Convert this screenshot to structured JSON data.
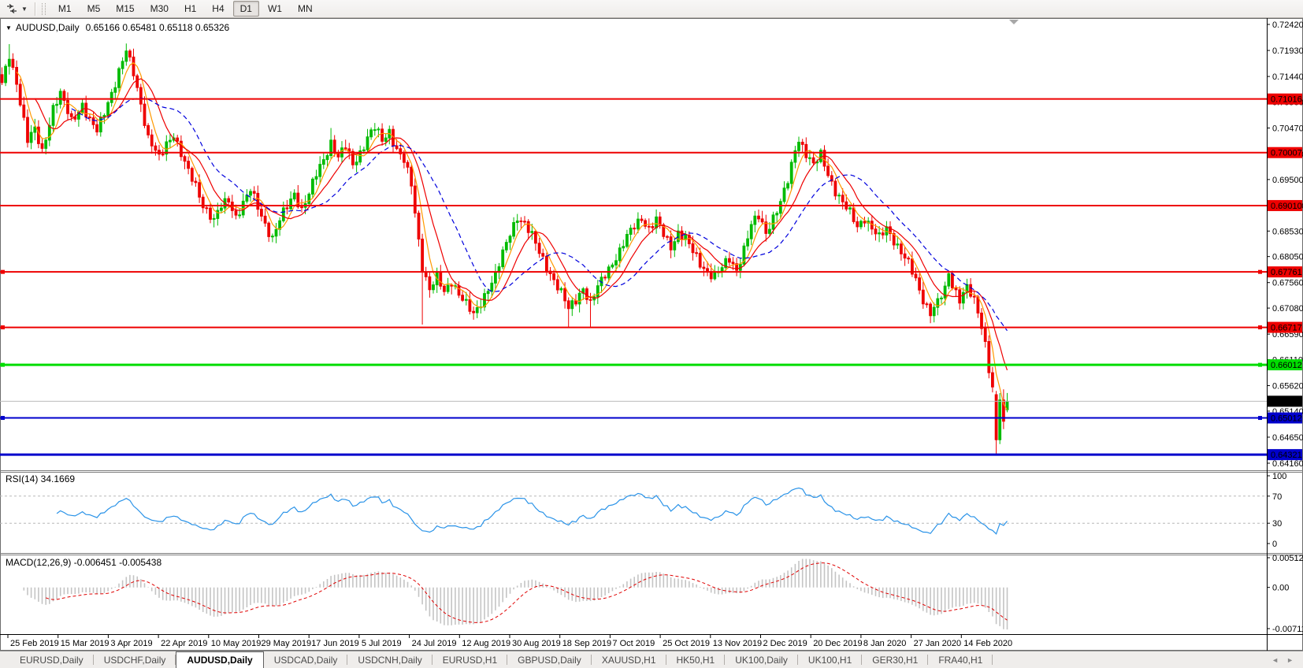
{
  "toolbar": {
    "timeframes": [
      "M1",
      "M5",
      "M15",
      "M30",
      "H1",
      "H4",
      "D1",
      "W1",
      "MN"
    ],
    "active_timeframe": "D1"
  },
  "chart": {
    "title_symbol": "AUDUSD,Daily",
    "title_ohlc": "0.65166 0.65481 0.65118 0.65326",
    "rsi_label": "RSI(14) 34.1669",
    "macd_label": "MACD(12,26,9) -0.006451 -0.005438"
  },
  "icons": {
    "symbol_dropdown": "▼",
    "toolbar_dropdown": "▼",
    "tabs_scroll_left": "◄",
    "tabs_scroll_right": "►"
  },
  "tabs": [
    "EURUSD,Daily",
    "USDCHF,Daily",
    "AUDUSD,Daily",
    "USDCAD,Daily",
    "USDCNH,Daily",
    "EURUSD,H1",
    "GBPUSD,Daily",
    "XAUUSD,H1",
    "HK50,H1",
    "UK100,Daily",
    "UK100,H1",
    "GER30,H1",
    "FRA40,H1"
  ],
  "active_tab": "AUDUSD,Daily",
  "chart_data": {
    "type": "candlestick",
    "symbol": "AUDUSD",
    "timeframe": "Daily",
    "ohlc_display": {
      "open": 0.65166,
      "high": 0.65481,
      "low": 0.65118,
      "close": 0.65326
    },
    "meta": {
      "candle_count": 276,
      "x0": 2.5,
      "step": 4.64,
      "noise": 0.0007
    },
    "price_axis": {
      "max": 0.7242,
      "min": 0.6416,
      "ticks": [
        "0.72420",
        "0.71930",
        "0.71440",
        "0.70960",
        "0.70470",
        "0.69980",
        "0.69500",
        "0.69010",
        "0.68530",
        "0.68050",
        "0.67560",
        "0.67080",
        "0.66590",
        "0.66110",
        "0.65620",
        "0.65140",
        "0.64650",
        "0.64160"
      ]
    },
    "hlines": [
      {
        "price": 0.71016,
        "label": "0.71016",
        "color": "#ee0000",
        "width": 2,
        "handles": false
      },
      {
        "price": 0.70007,
        "label": "0.70007",
        "color": "#ee0000",
        "width": 2,
        "handles": false
      },
      {
        "price": 0.6901,
        "label": "0.69010",
        "color": "#ee0000",
        "width": 2,
        "handles": false
      },
      {
        "price": 0.67761,
        "label": "0.67761",
        "color": "#ee0000",
        "width": 2,
        "handles": true
      },
      {
        "price": 0.66717,
        "label": "0.66717",
        "color": "#ee0000",
        "width": 2,
        "handles": true
      },
      {
        "price": 0.66012,
        "label": "0.66012",
        "color": "#00dd00",
        "width": 3,
        "handles": true
      },
      {
        "price": 0.65012,
        "label": "0.65012",
        "color": "#0000cc",
        "width": 2,
        "handles": true
      },
      {
        "price": 0.64321,
        "label": "0.64321",
        "color": "#0000cc",
        "width": 3,
        "handles": false
      }
    ],
    "current_price": {
      "price": 0.65326,
      "label": "0.65326",
      "line_color": "#bcbcbc",
      "badge_color": "#000000"
    },
    "candle_colors": {
      "up": "#00bb00",
      "down": "#ee0000"
    },
    "moving_averages": [
      {
        "period": 5,
        "color": "#ff9900",
        "style": "solid"
      },
      {
        "period": 10,
        "color": "#ee0000",
        "style": "solid"
      },
      {
        "period": 20,
        "color": "#0000dd",
        "style": "dash"
      }
    ],
    "rsi": {
      "period": 14,
      "current": "34.1669",
      "levels": [
        70,
        30
      ],
      "axis_labels": [
        "100",
        "70",
        "30",
        "0"
      ],
      "color": "#2a93e8"
    },
    "macd": {
      "fast": 12,
      "slow": 26,
      "signal": 9,
      "current": "-0.006451 -0.005438",
      "axis": {
        "top": 0.005121,
        "zero": 0.0,
        "bottom": -0.007111
      },
      "axis_labels": [
        "0.005121",
        "0.00",
        "-0.007111"
      ],
      "hist_color": "#c4c4c4",
      "signal_color": "#e00000"
    },
    "date_labels": [
      "25 Feb 2019",
      "15 Mar 2019",
      "3 Apr 2019",
      "22 Apr 2019",
      "10 May 2019",
      "29 May 2019",
      "17 Jun 2019",
      "5 Jul 2019",
      "24 Jul 2019",
      "12 Aug 2019",
      "30 Aug 2019",
      "18 Sep 2019",
      "7 Oct 2019",
      "25 Oct 2019",
      "13 Nov 2019",
      "2 Dec 2019",
      "20 Dec 2019",
      "8 Jan 2020",
      "27 Jan 2020",
      "14 Feb 2020"
    ],
    "price_path": [
      [
        0,
        0.7128
      ],
      [
        2,
        0.7185
      ],
      [
        4,
        0.7135
      ],
      [
        7,
        0.7022
      ],
      [
        9,
        0.7042
      ],
      [
        11,
        0.7005
      ],
      [
        14,
        0.7085
      ],
      [
        16,
        0.7108
      ],
      [
        19,
        0.7062
      ],
      [
        22,
        0.7092
      ],
      [
        24,
        0.7058
      ],
      [
        26,
        0.704
      ],
      [
        29,
        0.7098
      ],
      [
        31,
        0.7132
      ],
      [
        34,
        0.719
      ],
      [
        36,
        0.7152
      ],
      [
        38,
        0.7095
      ],
      [
        40,
        0.7028
      ],
      [
        43,
        0.6988
      ],
      [
        45,
        0.7018
      ],
      [
        47,
        0.7038
      ],
      [
        49,
        0.6998
      ],
      [
        51,
        0.6962
      ],
      [
        53,
        0.6938
      ],
      [
        55,
        0.6905
      ],
      [
        58,
        0.6872
      ],
      [
        60,
        0.6898
      ],
      [
        62,
        0.6912
      ],
      [
        64,
        0.6882
      ],
      [
        66,
        0.6905
      ],
      [
        68,
        0.6928
      ],
      [
        70,
        0.6898
      ],
      [
        72,
        0.6868
      ],
      [
        74,
        0.684
      ],
      [
        76,
        0.6872
      ],
      [
        78,
        0.6898
      ],
      [
        80,
        0.6925
      ],
      [
        82,
        0.6895
      ],
      [
        84,
        0.6922
      ],
      [
        86,
        0.6958
      ],
      [
        88,
        0.6988
      ],
      [
        90,
        0.7022
      ],
      [
        92,
        0.6992
      ],
      [
        94,
        0.701
      ],
      [
        96,
        0.6978
      ],
      [
        98,
        0.7002
      ],
      [
        100,
        0.703
      ],
      [
        102,
        0.7046
      ],
      [
        104,
        0.7022
      ],
      [
        106,
        0.7042
      ],
      [
        108,
        0.7008
      ],
      [
        110,
        0.6985
      ],
      [
        112,
        0.6938
      ],
      [
        114,
        0.6835
      ],
      [
        115,
        0.6788
      ],
      [
        117,
        0.6745
      ],
      [
        119,
        0.6765
      ],
      [
        121,
        0.6735
      ],
      [
        123,
        0.676
      ],
      [
        125,
        0.6738
      ],
      [
        127,
        0.6715
      ],
      [
        129,
        0.6692
      ],
      [
        131,
        0.6718
      ],
      [
        133,
        0.6748
      ],
      [
        135,
        0.677
      ],
      [
        137,
        0.6808
      ],
      [
        139,
        0.6848
      ],
      [
        141,
        0.6882
      ],
      [
        143,
        0.6868
      ],
      [
        145,
        0.6842
      ],
      [
        147,
        0.6812
      ],
      [
        149,
        0.6788
      ],
      [
        151,
        0.6762
      ],
      [
        153,
        0.6735
      ],
      [
        155,
        0.6705
      ],
      [
        157,
        0.6725
      ],
      [
        159,
        0.6748
      ],
      [
        161,
        0.6715
      ],
      [
        163,
        0.6745
      ],
      [
        165,
        0.6772
      ],
      [
        167,
        0.6795
      ],
      [
        169,
        0.6815
      ],
      [
        171,
        0.684
      ],
      [
        173,
        0.6862
      ],
      [
        175,
        0.688
      ],
      [
        177,
        0.6858
      ],
      [
        179,
        0.6872
      ],
      [
        181,
        0.6845
      ],
      [
        183,
        0.6825
      ],
      [
        185,
        0.6852
      ],
      [
        187,
        0.6838
      ],
      [
        189,
        0.6812
      ],
      [
        191,
        0.6792
      ],
      [
        193,
        0.6778
      ],
      [
        195,
        0.6768
      ],
      [
        197,
        0.6782
      ],
      [
        199,
        0.68
      ],
      [
        201,
        0.6782
      ],
      [
        203,
        0.682
      ],
      [
        205,
        0.6862
      ],
      [
        207,
        0.688
      ],
      [
        209,
        0.6852
      ],
      [
        211,
        0.688
      ],
      [
        213,
        0.6905
      ],
      [
        215,
        0.6945
      ],
      [
        216,
        0.6975
      ],
      [
        217,
        0.7008
      ],
      [
        218,
        0.7028
      ],
      [
        220,
        0.7
      ],
      [
        222,
        0.6975
      ],
      [
        224,
        0.6995
      ],
      [
        226,
        0.6962
      ],
      [
        228,
        0.693
      ],
      [
        230,
        0.6905
      ],
      [
        232,
        0.6885
      ],
      [
        234,
        0.6862
      ],
      [
        236,
        0.688
      ],
      [
        238,
        0.6858
      ],
      [
        240,
        0.6838
      ],
      [
        242,
        0.6858
      ],
      [
        244,
        0.6838
      ],
      [
        246,
        0.6815
      ],
      [
        248,
        0.679
      ],
      [
        250,
        0.6758
      ],
      [
        252,
        0.6725
      ],
      [
        254,
        0.6702
      ],
      [
        256,
        0.6718
      ],
      [
        258,
        0.674
      ],
      [
        259,
        0.6772
      ],
      [
        260,
        0.6752
      ],
      [
        262,
        0.6728
      ],
      [
        264,
        0.6748
      ],
      [
        266,
        0.6718
      ],
      [
        267,
        0.6698
      ],
      [
        268,
        0.6672
      ],
      [
        269,
        0.6642
      ],
      [
        270,
        0.6598
      ],
      [
        271,
        0.656
      ],
      [
        272,
        0.646
      ],
      [
        273,
        0.6535
      ],
      [
        274,
        0.6495
      ],
      [
        275,
        0.65326
      ]
    ],
    "wick_overrides": {
      "2": {
        "high": 0.7205
      },
      "34": {
        "high": 0.7206
      },
      "74": {
        "low": 0.6832
      },
      "90": {
        "high": 0.7047
      },
      "115": {
        "low": 0.6677
      },
      "129": {
        "low": 0.6686
      },
      "155": {
        "low": 0.6671
      },
      "161": {
        "low": 0.6672
      }
    },
    "candle_overrides": {
      "272": {
        "o": 0.6545,
        "h": 0.6552,
        "l": 0.6433,
        "c": 0.646
      },
      "273": {
        "o": 0.646,
        "h": 0.6548,
        "l": 0.6452,
        "c": 0.6535
      },
      "274": {
        "o": 0.6535,
        "h": 0.6555,
        "l": 0.648,
        "c": 0.6495
      },
      "275": {
        "o": 0.65166,
        "h": 0.65481,
        "l": 0.65118,
        "c": 0.65326
      }
    }
  }
}
